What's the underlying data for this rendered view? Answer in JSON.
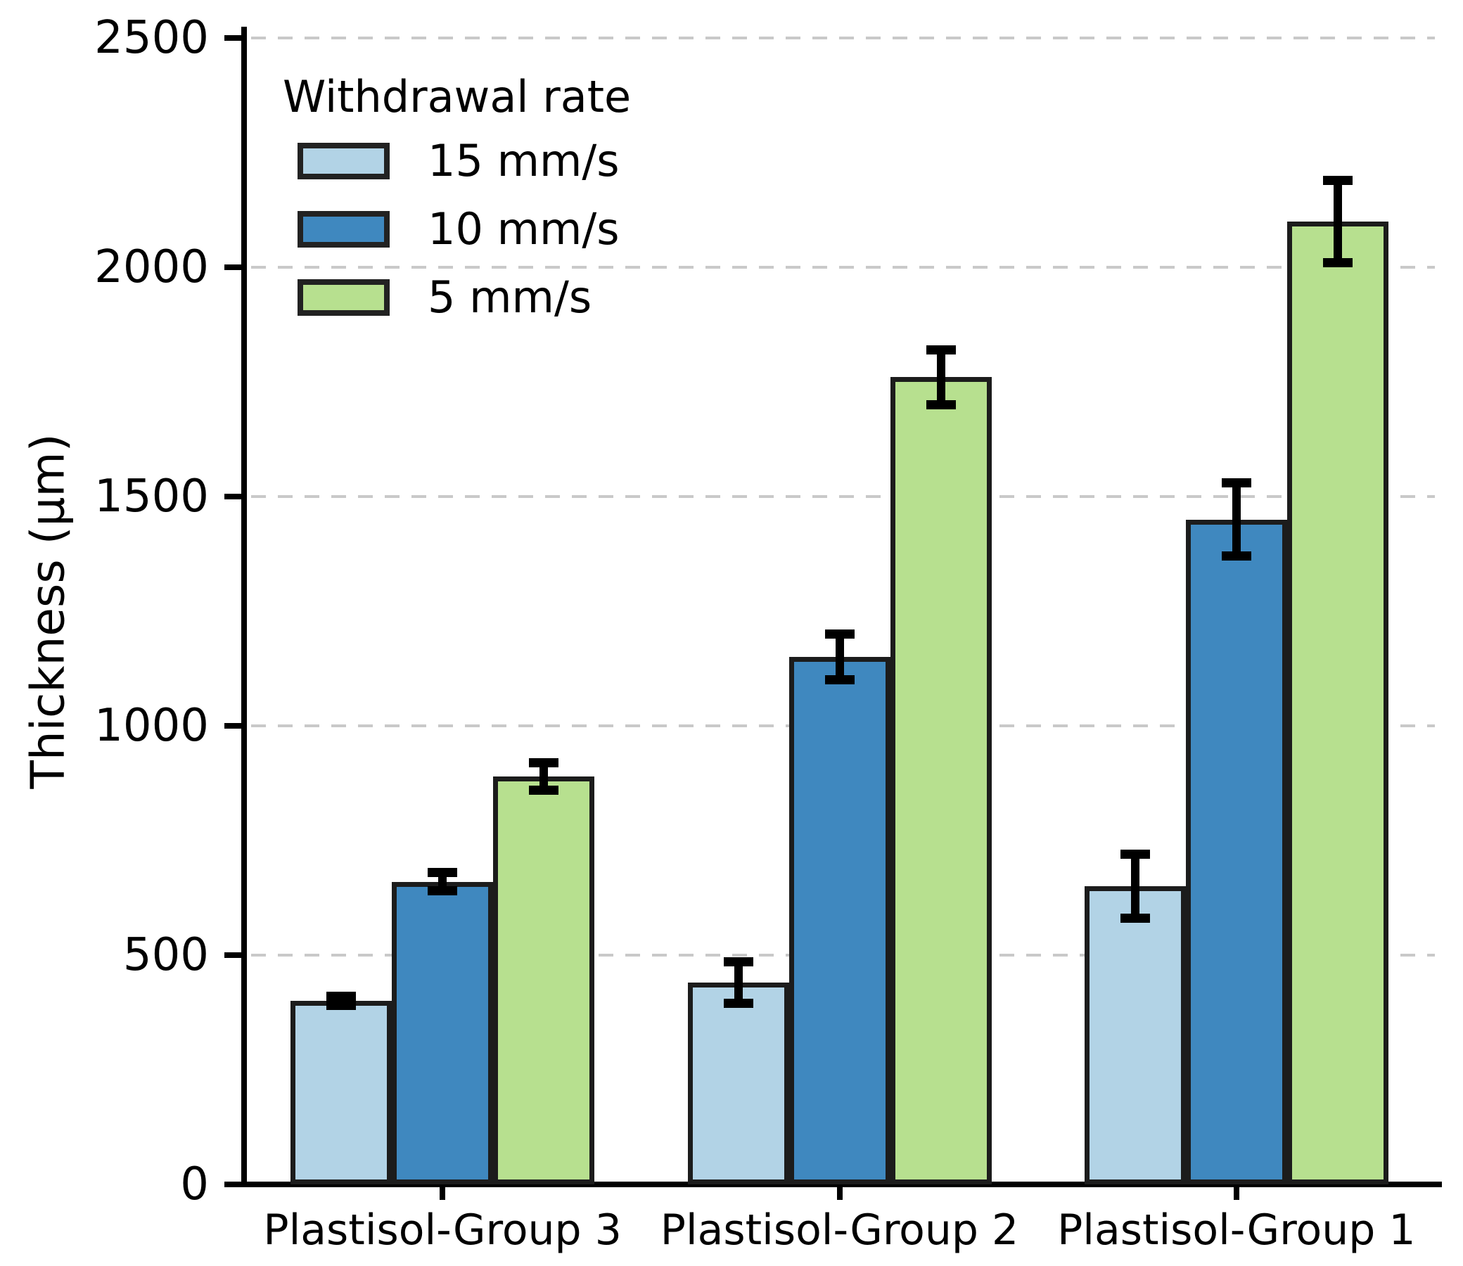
{
  "figure": {
    "background": "#ffffff"
  },
  "axes": {
    "y_label": "Thickness (μm)",
    "y_tick_labels": [
      "0",
      "500",
      "1000",
      "1500",
      "2000",
      "2500"
    ],
    "y_tick_values": [
      0,
      500,
      1000,
      1500,
      2000,
      2500
    ],
    "x_tick_labels": [
      "Plastisol-Group 3",
      "Plastisol-Group 2",
      "Plastisol-Group 1"
    ]
  },
  "legend": {
    "title": "Withdrawal rate",
    "items": [
      {
        "label": "15 mm/s",
        "color": "#b2d3e6"
      },
      {
        "label": "10 mm/s",
        "color": "#3f88bf"
      },
      {
        "label": "5 mm/s",
        "color": "#b7e08f"
      }
    ]
  },
  "chart_data": {
    "type": "bar",
    "title": "",
    "xlabel": "",
    "ylabel": "Thickness (μm)",
    "ylim": [
      0,
      2500
    ],
    "grid": "horizontal dashed gray at every 500",
    "legend_position": "upper left",
    "error_bars": true,
    "categories": [
      "Plastisol-Group 3",
      "Plastisol-Group 2",
      "Plastisol-Group 1"
    ],
    "series": [
      {
        "name": "15 mm/s",
        "color": "#b2d3e6",
        "values": [
          400,
          440,
          650
        ],
        "errors": [
          20,
          55,
          80
        ]
      },
      {
        "name": "10 mm/s",
        "color": "#3f88bf",
        "values": [
          660,
          1150,
          1450
        ],
        "errors": [
          30,
          60,
          90
        ]
      },
      {
        "name": "5 mm/s",
        "color": "#b7e08f",
        "values": [
          890,
          1760,
          2100
        ],
        "errors": [
          40,
          70,
          100
        ]
      }
    ]
  },
  "style": {
    "bar_edge_color": "#1c1c1c",
    "grid_color": "#c9c9c9",
    "error_color": "#000000",
    "axis_color": "#000000"
  }
}
